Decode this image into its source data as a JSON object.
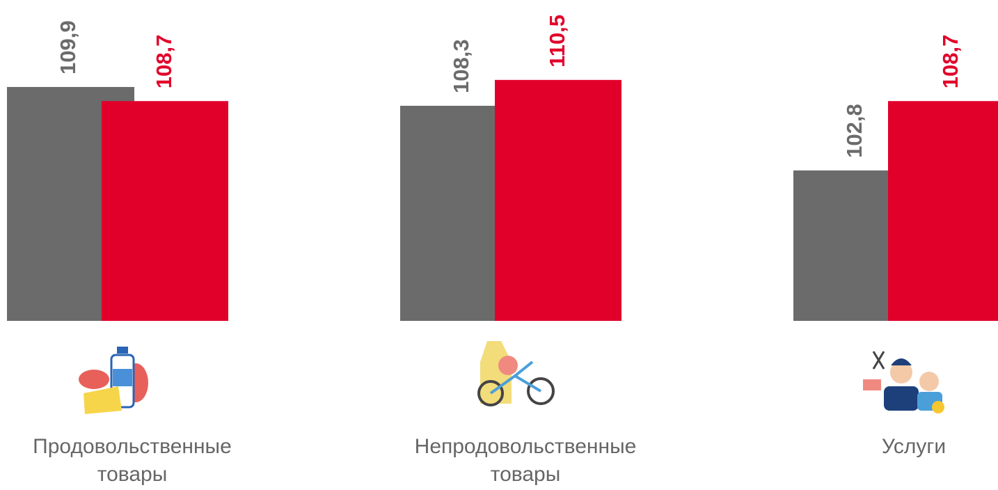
{
  "chart_data": {
    "type": "bar",
    "categories": [
      "Продовольственные товары",
      "Непродовольственные товары",
      "Услуги"
    ],
    "series": [
      {
        "color": "#6b6b6b",
        "values": [
          109.9,
          108.3,
          102.8
        ],
        "value_labels": [
          "109,9",
          "108,3",
          "102,8"
        ]
      },
      {
        "color": "#e1002a",
        "values": [
          108.7,
          110.5,
          108.7
        ],
        "value_labels": [
          "108,7",
          "110,5",
          "108,7"
        ]
      }
    ],
    "ylim": [
      90,
      117.3
    ]
  }
}
